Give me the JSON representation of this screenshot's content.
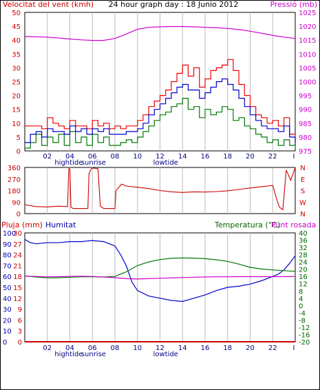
{
  "header": {
    "wind_title": "Velocitat del vent (kmh)",
    "main_title": "24 hour graph day : 18 Junio 2012",
    "pressure_title": "Pressió (mb)"
  },
  "bottom_headers": {
    "rain": "Pluja (mm)",
    "humidity": "Humitat",
    "temperature": "Temperatura (°C)",
    "dewpoint": "Punt rosada"
  },
  "colors": {
    "wind_axis": "#cc0000",
    "pressure_axis": "#cc00cc",
    "humidity_axis": "#0000aa",
    "temp_axis": "#006600",
    "gust": "#ee0000",
    "avg_wind": "#0000cc",
    "wind_lower": "#007700",
    "pressure": "#cc00cc",
    "direction": "#cc0000",
    "humidity": "#0000cc",
    "temperature": "#007700",
    "dewpoint": "#cc00cc",
    "rain": "#cc0000",
    "grid": "#bbbbbb"
  },
  "x_axis": {
    "hour_ticks": [
      "02",
      "04",
      "06",
      "08",
      "10",
      "12",
      "14",
      "16",
      "18",
      "20",
      "22"
    ],
    "end_tick": "I",
    "markers": [
      "hightide",
      "sunrise",
      "lowtide"
    ]
  },
  "chart_data": [
    {
      "type": "line",
      "title": "24 hour graph day : 18 Junio 2012",
      "xlabel": "",
      "ylabel": "Velocitat del vent (kmh)",
      "y2label": "Pressió (mb)",
      "xlim": [
        0,
        24
      ],
      "ylim": [
        0,
        50
      ],
      "y2lim": [
        975,
        1025
      ],
      "yticks": [
        0,
        5,
        10,
        15,
        20,
        25,
        30,
        35,
        40,
        45,
        50
      ],
      "y2ticks": [
        975,
        980,
        985,
        990,
        995,
        1000,
        1005,
        1010,
        1015,
        1020,
        1025
      ],
      "series": [
        {
          "name": "gust",
          "axis": "left",
          "x": [
            0,
            0.5,
            1,
            1.5,
            2,
            2.5,
            3,
            3.5,
            4,
            4.5,
            5,
            5.5,
            6,
            6.5,
            7,
            7.5,
            8,
            8.5,
            9,
            9.5,
            10,
            10.5,
            11,
            11.5,
            12,
            12.5,
            13,
            13.5,
            14,
            14.5,
            15,
            15.5,
            16,
            16.5,
            17,
            17.5,
            18,
            18.5,
            19,
            19.5,
            20,
            20.5,
            21,
            21.5,
            22,
            22.5,
            23,
            23.5,
            24
          ],
          "values": [
            9,
            9,
            9,
            8,
            12,
            10,
            9,
            8,
            11,
            9,
            9,
            8,
            11,
            9,
            10,
            8,
            9,
            8,
            9,
            9,
            11,
            13,
            16,
            18,
            20,
            22,
            25,
            28,
            31,
            27,
            30,
            23,
            26,
            29,
            30,
            31,
            33,
            29,
            24,
            20,
            16,
            13,
            12,
            10,
            11,
            9,
            12,
            6,
            3
          ]
        },
        {
          "name": "average wind",
          "axis": "left",
          "x": [
            0,
            0.5,
            1,
            1.5,
            2,
            2.5,
            3,
            3.5,
            4,
            4.5,
            5,
            5.5,
            6,
            6.5,
            7,
            7.5,
            8,
            8.5,
            9,
            9.5,
            10,
            10.5,
            11,
            11.5,
            12,
            12.5,
            13,
            13.5,
            14,
            14.5,
            15,
            15.5,
            16,
            16.5,
            17,
            17.5,
            18,
            18.5,
            19,
            19.5,
            20,
            20.5,
            21,
            21.5,
            22,
            22.5,
            23,
            23.5,
            24
          ],
          "values": [
            3,
            6,
            7,
            5,
            8,
            7,
            7,
            6,
            9,
            7,
            8,
            6,
            8,
            7,
            8,
            6,
            6,
            6,
            7,
            7,
            8,
            10,
            13,
            15,
            17,
            19,
            21,
            23,
            24,
            22,
            22,
            19,
            21,
            23,
            25,
            26,
            24,
            22,
            19,
            16,
            13,
            11,
            9,
            8,
            8,
            7,
            9,
            5,
            2
          ]
        },
        {
          "name": "wind lower",
          "axis": "left",
          "x": [
            0,
            0.5,
            1,
            1.5,
            2,
            2.5,
            3,
            3.5,
            4,
            4.5,
            5,
            5.5,
            6,
            6.5,
            7,
            7.5,
            8,
            8.5,
            9,
            9.5,
            10,
            10.5,
            11,
            11.5,
            12,
            12.5,
            13,
            13.5,
            14,
            14.5,
            15,
            15.5,
            16,
            16.5,
            17,
            17.5,
            18,
            18.5,
            19,
            19.5,
            20,
            20.5,
            21,
            21.5,
            22,
            22.5,
            23,
            23.5,
            24
          ],
          "values": [
            1,
            3,
            6,
            2,
            5,
            3,
            6,
            2,
            7,
            3,
            5,
            2,
            6,
            3,
            5,
            2,
            2,
            3,
            4,
            3,
            5,
            7,
            9,
            11,
            13,
            14,
            16,
            17,
            19,
            15,
            16,
            12,
            15,
            13,
            14,
            16,
            15,
            11,
            12,
            9,
            8,
            6,
            5,
            3,
            4,
            2,
            4,
            2,
            1
          ]
        },
        {
          "name": "pressure",
          "axis": "right",
          "x": [
            0,
            2,
            4,
            5,
            6,
            7,
            8,
            9,
            10,
            11,
            12,
            13,
            14,
            15,
            16,
            17,
            18,
            19,
            20,
            21,
            22,
            23,
            24
          ],
          "values": [
            1016.3,
            1016.1,
            1015.4,
            1015.1,
            1014.9,
            1014.9,
            1015.6,
            1017.2,
            1018.9,
            1019.6,
            1019.8,
            1019.9,
            1019.9,
            1019.8,
            1019.6,
            1019.5,
            1019.2,
            1018.8,
            1018.2,
            1017.5,
            1016.7,
            1016.1,
            1015.6
          ]
        }
      ]
    },
    {
      "type": "line",
      "title": "",
      "xlabel": "",
      "ylabel": "",
      "xlim": [
        0,
        24
      ],
      "ylim": [
        0,
        360
      ],
      "yticks": [
        0,
        90,
        180,
        270,
        360
      ],
      "ytick_labels": [
        "0",
        "90",
        "180",
        "270",
        "360"
      ],
      "right_labels": [
        "N",
        "W",
        "S",
        "E",
        "N"
      ],
      "series": [
        {
          "name": "direction",
          "x": [
            0,
            1,
            2,
            3,
            3.8,
            3.9,
            4,
            4.1,
            4.3,
            5,
            5.6,
            5.7,
            5.9,
            6.1,
            6.5,
            6.7,
            7,
            7.2,
            8,
            8.1,
            8.6,
            9,
            10,
            11,
            12,
            13,
            14,
            15,
            16,
            17,
            18,
            19,
            20,
            21,
            22,
            22.4,
            22.6,
            22.9,
            23.2,
            23.6,
            24
          ],
          "values": [
            70,
            55,
            52,
            58,
            55,
            350,
            350,
            50,
            40,
            40,
            40,
            310,
            350,
            355,
            350,
            60,
            40,
            40,
            40,
            180,
            230,
            215,
            205,
            195,
            180,
            170,
            165,
            170,
            168,
            172,
            178,
            188,
            200,
            210,
            220,
            100,
            50,
            30,
            340,
            260,
            360
          ]
        }
      ]
    },
    {
      "type": "line",
      "title": "",
      "xlabel": "",
      "ylabel": "Pluja (mm)",
      "y2label": "Temperatura (°C)",
      "xlim": [
        0,
        24
      ],
      "rain_axis": {
        "ylim": [
          0,
          30
        ],
        "ticks": [
          0,
          3,
          6,
          9,
          12,
          15,
          18,
          21,
          24,
          27,
          30
        ]
      },
      "humidity_axis": {
        "ylim": [
          0,
          100
        ],
        "ticks": [
          0,
          10,
          20,
          30,
          40,
          50,
          60,
          70,
          80,
          90,
          100
        ]
      },
      "temp_axis": {
        "ylim": [
          -20,
          40
        ],
        "ticks": [
          -20,
          -16,
          -12,
          -8,
          -4,
          0,
          4,
          8,
          12,
          16,
          20,
          24,
          28,
          32,
          36,
          40
        ]
      },
      "series": [
        {
          "name": "Humitat",
          "axis": "humidity",
          "x": [
            0,
            0.5,
            1,
            2,
            3,
            4,
            5,
            6,
            7,
            7.5,
            8,
            8.5,
            9,
            9.5,
            10,
            11,
            12,
            13,
            14,
            15,
            16,
            17,
            18,
            19,
            20,
            21,
            22,
            22.5,
            23,
            23.5,
            24
          ],
          "values": [
            94,
            91,
            90,
            91,
            91,
            92,
            92,
            93,
            92,
            90,
            88,
            80,
            70,
            55,
            47,
            42,
            40,
            38,
            37,
            40,
            43,
            47,
            50,
            51,
            53,
            56,
            60,
            62,
            66,
            72,
            79
          ]
        },
        {
          "name": "Temperatura (°C)",
          "axis": "temp",
          "x": [
            0,
            1,
            2,
            3,
            4,
            5,
            6,
            7,
            8,
            9,
            10,
            11,
            12,
            13,
            14,
            15,
            16,
            17,
            18,
            19,
            20,
            21,
            22,
            23,
            24
          ],
          "values": [
            16.3,
            15.7,
            15.2,
            15.3,
            15.6,
            15.8,
            15.8,
            15.7,
            16.0,
            18.5,
            22.0,
            24.0,
            25.3,
            26.0,
            26.2,
            26.1,
            25.8,
            25.2,
            24.3,
            22.8,
            21.0,
            20.1,
            19.6,
            19.2,
            18.8
          ]
        },
        {
          "name": "Punt rosada",
          "axis": "temp",
          "x": [
            0,
            1,
            2,
            3,
            4,
            5,
            6,
            7,
            8,
            9,
            10,
            11,
            12,
            13,
            14,
            15,
            16,
            17,
            18,
            19,
            20,
            21,
            22,
            23,
            24
          ],
          "values": [
            16.2,
            16.0,
            15.8,
            15.9,
            16.0,
            16.1,
            16.0,
            15.7,
            15.3,
            14.8,
            14.6,
            14.8,
            15.0,
            15.2,
            15.4,
            15.6,
            15.7,
            15.8,
            15.8,
            15.9,
            15.9,
            15.9,
            15.9,
            15.9,
            16.0
          ]
        },
        {
          "name": "Pluja (mm)",
          "axis": "rain",
          "x": [
            0,
            24
          ],
          "values": [
            0,
            0
          ]
        }
      ]
    }
  ]
}
